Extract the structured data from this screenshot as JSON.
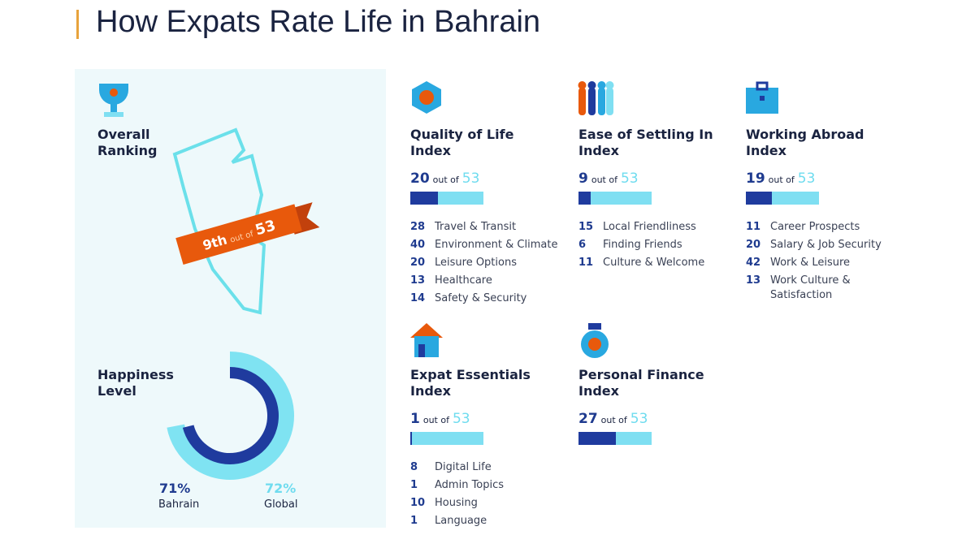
{
  "header": {
    "title": "How Expats Rate Life in Bahrain"
  },
  "overall": {
    "title": [
      "Overall",
      "Ranking"
    ],
    "rank": {
      "value": 9,
      "label": "9th"
    },
    "out_of": "out of",
    "total": 53
  },
  "happiness": {
    "title": [
      "Happiness",
      "Level"
    ],
    "bahrain": {
      "value": 71,
      "label": "71%",
      "name": "Bahrain"
    },
    "global": {
      "value": 72,
      "label": "72%",
      "name": "Global"
    }
  },
  "indices": [
    {
      "title": [
        "Quality of Life",
        "Index"
      ],
      "rank": 20,
      "out_of": "out of",
      "total": 53,
      "items": [
        {
          "rank": 28,
          "label": "Travel & Transit"
        },
        {
          "rank": 40,
          "label": "Environment & Climate"
        },
        {
          "rank": 20,
          "label": "Leisure Options"
        },
        {
          "rank": 13,
          "label": "Healthcare"
        },
        {
          "rank": 14,
          "label": "Safety & Security"
        }
      ]
    },
    {
      "title": [
        "Ease of Settling In",
        "Index"
      ],
      "rank": 9,
      "out_of": "out of",
      "total": 53,
      "items": [
        {
          "rank": 15,
          "label": "Local Friendliness"
        },
        {
          "rank": 6,
          "label": "Finding Friends"
        },
        {
          "rank": 11,
          "label": "Culture & Welcome"
        }
      ]
    },
    {
      "title": [
        "Working Abroad",
        "Index"
      ],
      "rank": 19,
      "out_of": "out of",
      "total": 53,
      "items": [
        {
          "rank": 11,
          "label": "Career Prospects"
        },
        {
          "rank": 20,
          "label": "Salary & Job Security"
        },
        {
          "rank": 42,
          "label": "Work & Leisure"
        },
        {
          "rank": 13,
          "label": "Work Culture & Satisfaction"
        }
      ]
    },
    {
      "title": [
        "Expat Essentials",
        "Index"
      ],
      "rank": 1,
      "out_of": "out of",
      "total": 53,
      "items": [
        {
          "rank": 8,
          "label": "Digital Life"
        },
        {
          "rank": 1,
          "label": "Admin Topics"
        },
        {
          "rank": 10,
          "label": "Housing"
        },
        {
          "rank": 1,
          "label": "Language"
        }
      ]
    },
    {
      "title": [
        "Personal Finance",
        "Index"
      ],
      "rank": 27,
      "out_of": "out of",
      "total": 53,
      "items": []
    }
  ]
}
